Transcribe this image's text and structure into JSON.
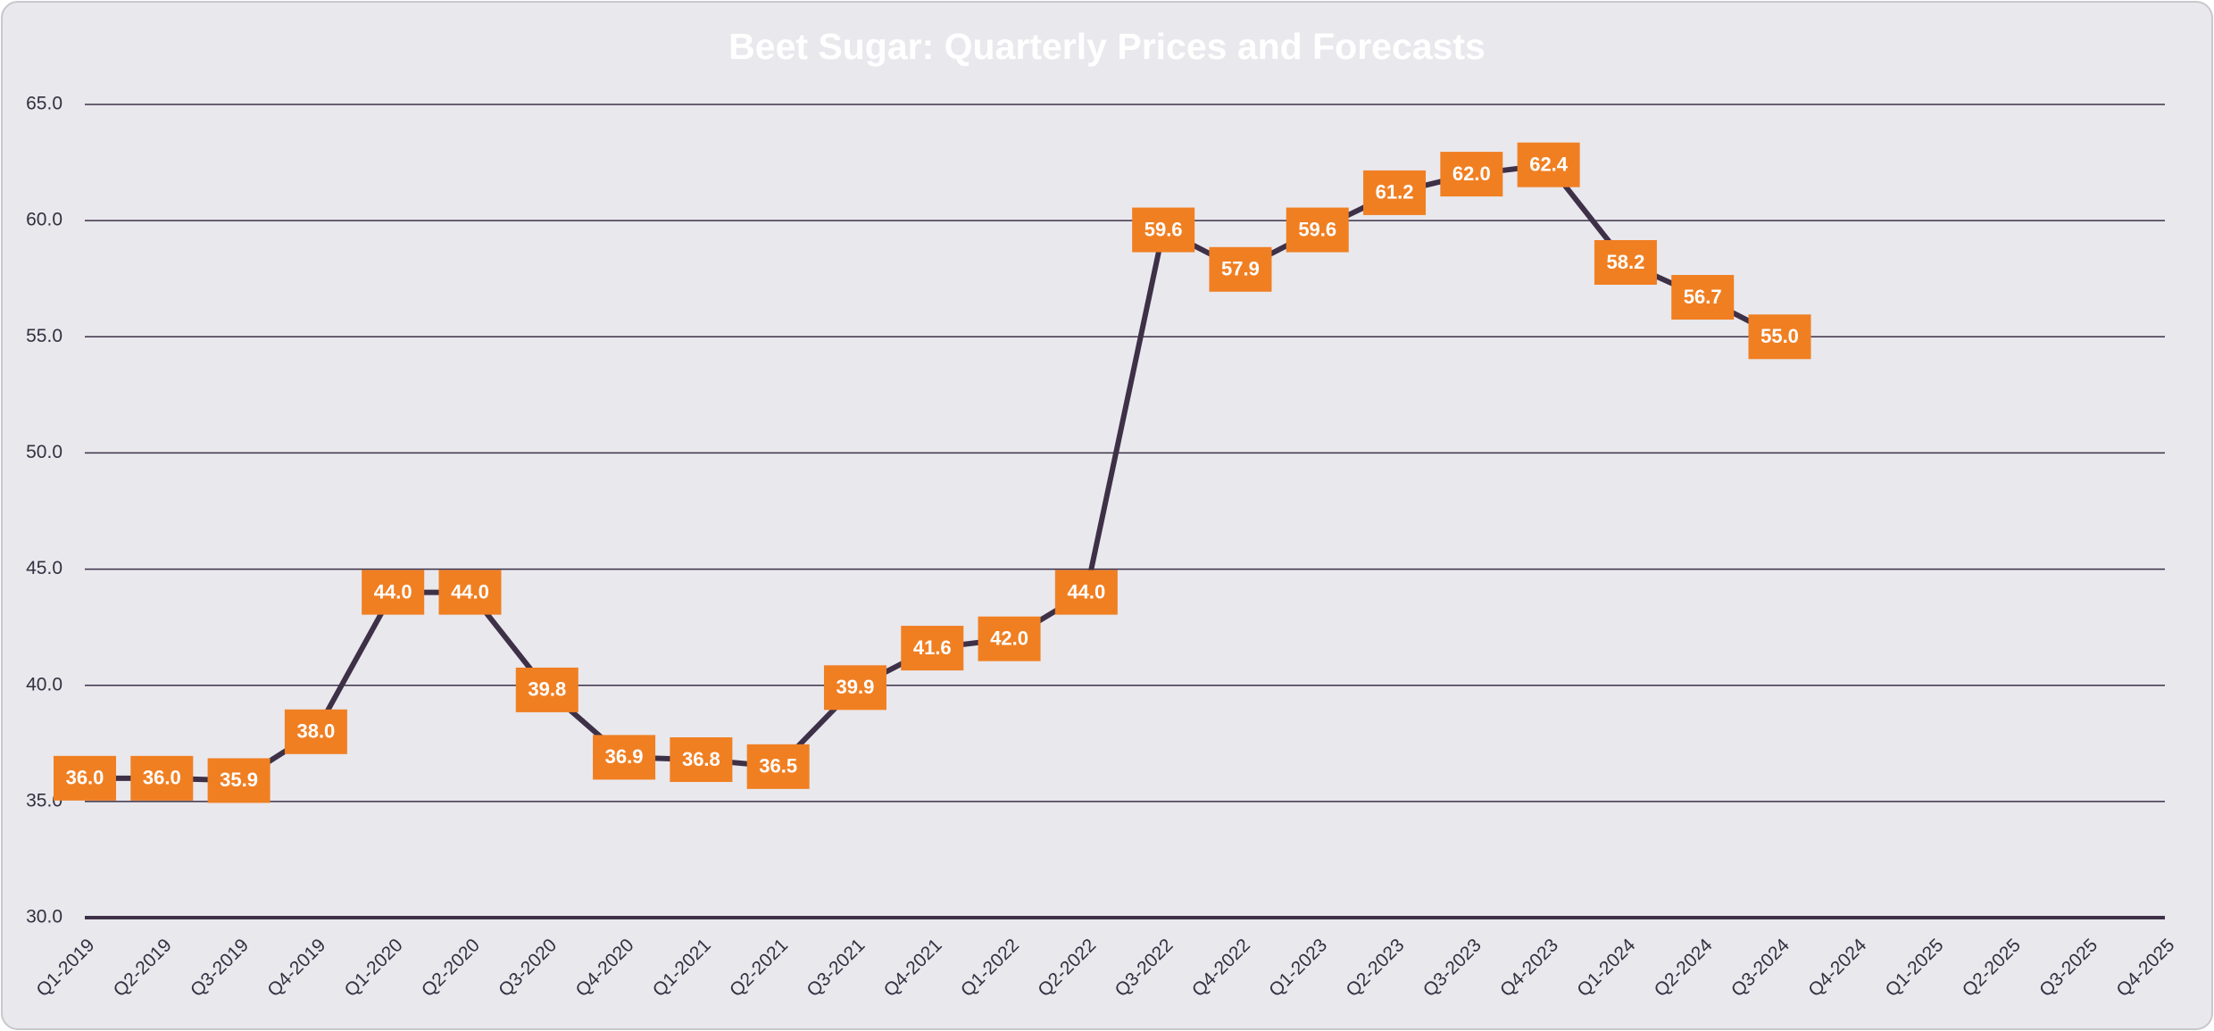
{
  "chart_data": {
    "type": "line",
    "title": "Beet Sugar: Quarterly Prices and Forecasts",
    "categories": [
      "Q1-2019",
      "Q2-2019",
      "Q3-2019",
      "Q4-2019",
      "Q1-2020",
      "Q2-2020",
      "Q3-2020",
      "Q4-2020",
      "Q1-2021",
      "Q2-2021",
      "Q3-2021",
      "Q4-2021",
      "Q1-2022",
      "Q2-2022",
      "Q3-2022",
      "Q4-2022",
      "Q1-2023",
      "Q2-2023",
      "Q3-2023",
      "Q4-2023",
      "Q1-2024",
      "Q2-2024",
      "Q3-2024",
      "Q4-2024",
      "Q1-2025",
      "Q2-2025",
      "Q3-2025",
      "Q4-2025"
    ],
    "series": [
      {
        "color": "#3d3047",
        "label_color": "#f07f22",
        "values": [
          36,
          36,
          35.9,
          38,
          44,
          44,
          39.8,
          36.9,
          36.8,
          36.5,
          39.9,
          41.6,
          42,
          44,
          59.6,
          57.9,
          59.6,
          61.2,
          62,
          62.4,
          58.2,
          56.7,
          55,
          null,
          null,
          null,
          null,
          null
        ],
        "value_labels": [
          "36.0",
          "36.0",
          "35.9",
          "38.0",
          "44.0",
          "44.0",
          "39.8",
          "36.9",
          "36.8",
          "36.5",
          "39.9",
          "41.6",
          "42.0",
          "44.0",
          "59.6",
          "57.9",
          "59.6",
          "61.2",
          "62.0",
          "62.4",
          "58.2",
          "56.7",
          "55.0",
          null,
          null,
          null,
          null,
          null
        ]
      }
    ],
    "ylim": [
      30,
      65
    ],
    "yticks": [
      {
        "value": 30,
        "label": "30.0"
      },
      {
        "value": 35,
        "label": "35.0"
      },
      {
        "value": 40,
        "label": "40.0"
      },
      {
        "value": 45,
        "label": "45.0"
      },
      {
        "value": 50,
        "label": "50.0"
      },
      {
        "value": 55,
        "label": "55.0"
      },
      {
        "value": 60,
        "label": "60.0"
      },
      {
        "value": 65,
        "label": "65.0"
      }
    ],
    "grid": true
  }
}
